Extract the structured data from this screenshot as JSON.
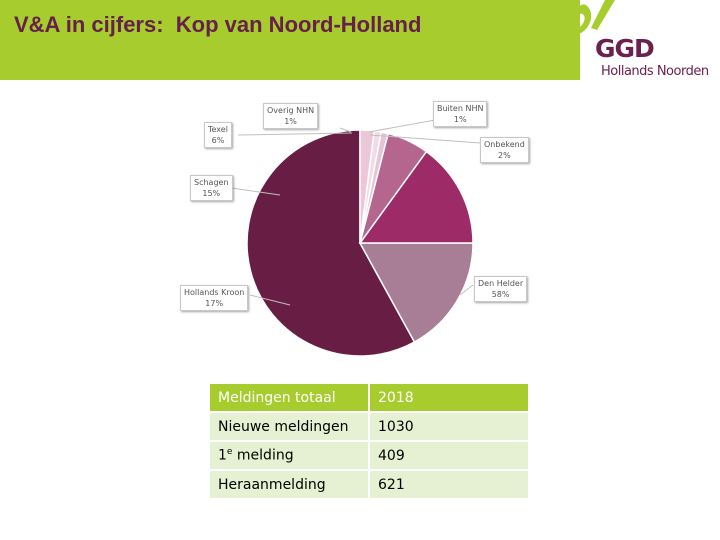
{
  "header": {
    "title": "V&A in cijfers:  Kop van Noord-Holland",
    "background": "#a6cd2d",
    "title_color": "#66204a"
  },
  "logo": {
    "name": "GGD",
    "subtitle": "Hollands Noorden",
    "color": "#6b2050",
    "swoosh_color": "#a6cd2d"
  },
  "chart_data": {
    "type": "pie",
    "slices": [
      {
        "name": "Den Helder",
        "value": 58,
        "label": "58%",
        "color": "#681e44"
      },
      {
        "name": "Hollands Kroon",
        "value": 17,
        "label": "17%",
        "color": "#a87e96"
      },
      {
        "name": "Schagen",
        "value": 15,
        "label": "15%",
        "color": "#9c2b68"
      },
      {
        "name": "Texel",
        "value": 6,
        "label": "6%",
        "color": "#b5668f"
      },
      {
        "name": "Overig NHN",
        "value": 1,
        "label": "1%",
        "color": "#e5c5d5"
      },
      {
        "name": "Buiten NHN",
        "value": 1,
        "label": "1%",
        "color": "#f1dbe6"
      },
      {
        "name": "Onbekend",
        "value": 2,
        "label": "2%",
        "color": "#ecc7d8"
      }
    ],
    "start_angle_deg": 0,
    "direction": "counterclockwise",
    "data_labels": "callouts"
  },
  "table": {
    "header": {
      "label": "Meldingen totaal",
      "value": "2018"
    },
    "rows": [
      {
        "label": "Nieuwe meldingen",
        "value": "1030"
      },
      {
        "label_base": "1",
        "label_sup": "e",
        "label_rest": " melding",
        "value": "409"
      },
      {
        "label": "Heraanmelding",
        "value": "621"
      }
    ],
    "header_color": "#a6cd2d",
    "row_color": "#e6f1d3"
  }
}
